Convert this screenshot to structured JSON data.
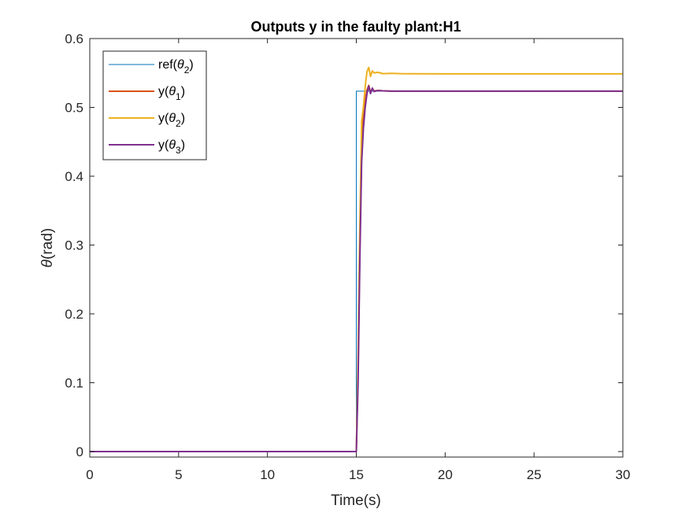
{
  "chart_data": {
    "type": "line",
    "title": "Outputs y in the faulty plant:H1",
    "xlabel": "Time(s)",
    "ylabel": "θ(rad)",
    "xlim": [
      0,
      30
    ],
    "ylim": [
      -0.008,
      0.6
    ],
    "xticks": [
      0,
      5,
      10,
      15,
      20,
      25,
      30
    ],
    "yticks": [
      0,
      0.1,
      0.2,
      0.3,
      0.4,
      0.5,
      0.6
    ],
    "xtick_labels": [
      "0",
      "5",
      "10",
      "15",
      "20",
      "25",
      "30"
    ],
    "ytick_labels": [
      "0",
      "0.1",
      "0.2",
      "0.3",
      "0.4",
      "0.5",
      "0.6"
    ],
    "grid": false,
    "legend_position": "top-left",
    "series": [
      {
        "key": "ref2",
        "legend": {
          "prefix": "ref(",
          "sub": "2"
        },
        "color": "#0072BD",
        "line_width": 1,
        "x": [
          0,
          15.0,
          15.0,
          30
        ],
        "y": [
          0,
          0,
          0.5236,
          0.5236
        ]
      },
      {
        "key": "y1",
        "legend": {
          "prefix": "y(",
          "sub": "1"
        },
        "color": "#D95319",
        "line_width": 2,
        "x": [
          0,
          15.0,
          15.1,
          15.2,
          15.3,
          15.4,
          15.5,
          15.6,
          15.7,
          15.8,
          15.9,
          16.0,
          16.2,
          16.5,
          17.0,
          18.0,
          20.0,
          30.0
        ],
        "y": [
          0,
          0,
          0.12,
          0.3,
          0.44,
          0.49,
          0.51,
          0.525,
          0.532,
          0.522,
          0.527,
          0.524,
          0.5245,
          0.524,
          0.5236,
          0.5236,
          0.5236,
          0.5236
        ]
      },
      {
        "key": "y2",
        "legend": {
          "prefix": "y(",
          "sub": "2"
        },
        "color": "#EDB120",
        "line_width": 2,
        "x": [
          0,
          15.0,
          15.1,
          15.2,
          15.3,
          15.4,
          15.5,
          15.6,
          15.7,
          15.8,
          15.9,
          16.0,
          16.2,
          16.5,
          17.0,
          17.5,
          18.0,
          20.0,
          30.0
        ],
        "y": [
          0,
          0,
          0.14,
          0.33,
          0.48,
          0.5,
          0.53,
          0.552,
          0.558,
          0.545,
          0.553,
          0.55,
          0.551,
          0.549,
          0.5495,
          0.549,
          0.5488,
          0.5487,
          0.5487
        ]
      },
      {
        "key": "y3",
        "legend": {
          "prefix": "y(",
          "sub": "3"
        },
        "color": "#7E2F8E",
        "line_width": 2,
        "x": [
          0,
          15.0,
          15.1,
          15.2,
          15.3,
          15.4,
          15.5,
          15.6,
          15.7,
          15.8,
          15.9,
          16.0,
          16.2,
          16.5,
          17.0,
          18.0,
          20.0,
          30.0
        ],
        "y": [
          0,
          0,
          0.1,
          0.28,
          0.42,
          0.47,
          0.5,
          0.52,
          0.531,
          0.52,
          0.528,
          0.523,
          0.5245,
          0.524,
          0.5236,
          0.5236,
          0.5236,
          0.5236
        ]
      }
    ],
    "legend_close": ")",
    "legend_theta": "θ"
  }
}
